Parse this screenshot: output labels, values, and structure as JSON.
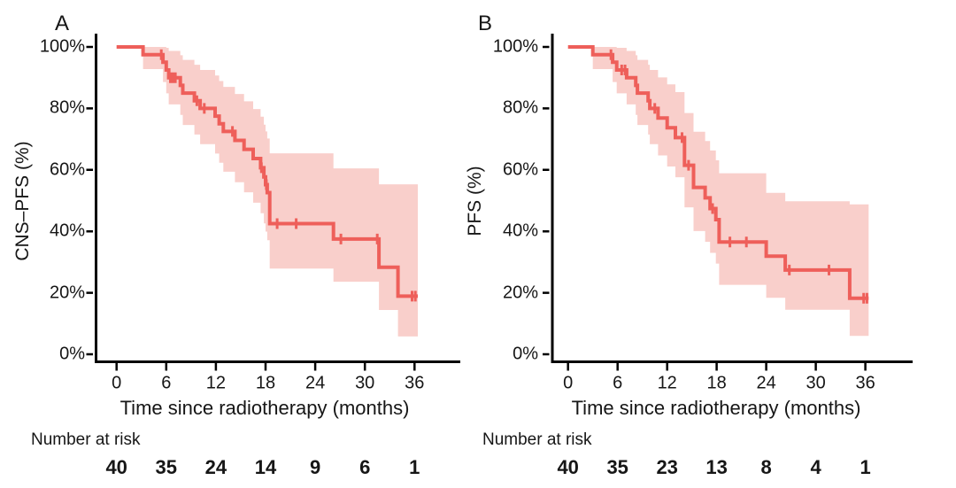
{
  "figure": {
    "background_color": "#ffffff",
    "curve_color": "#EE5F5A",
    "band_color": "#F9CFCB",
    "axis_color": "#000000",
    "text_color": "#161616"
  },
  "chart_data": [
    {
      "type": "line",
      "curve_style": "kaplan-meier-step",
      "panel_label": "A",
      "ylabel": "CNS–PFS (%)",
      "xlabel": "Time since radiotherapy (months)",
      "xticks": [
        0,
        6,
        12,
        18,
        24,
        30,
        36
      ],
      "ytick_labels": [
        "100%",
        "80%",
        "60%",
        "40%",
        "20%",
        "0%"
      ],
      "yticks": [
        100,
        80,
        60,
        40,
        20,
        0
      ],
      "xlim": [
        0,
        41.5
      ],
      "ylim": [
        0,
        100
      ],
      "legend": "none",
      "grid": "off",
      "band_is": "95% confidence interval (shaded)",
      "steps_t_s_lo_hi": [
        [
          0.0,
          100.0,
          100.0,
          100.0
        ],
        [
          3.2,
          97.5,
          92.8,
          100.0
        ],
        [
          5.6,
          95.0,
          88.6,
          100.0
        ],
        [
          6.0,
          92.5,
          84.9,
          99.7
        ],
        [
          6.3,
          90.0,
          81.3,
          98.7
        ],
        [
          7.7,
          87.5,
          77.9,
          97.3
        ],
        [
          8.0,
          85.0,
          74.6,
          95.8
        ],
        [
          9.4,
          82.5,
          71.5,
          94.2
        ],
        [
          10.1,
          80.0,
          68.4,
          92.5
        ],
        [
          11.9,
          77.5,
          65.3,
          90.7
        ],
        [
          12.4,
          75.0,
          62.3,
          88.9
        ],
        [
          12.9,
          72.5,
          59.4,
          87.0
        ],
        [
          14.3,
          69.6,
          56.0,
          84.7
        ],
        [
          15.4,
          66.7,
          52.7,
          82.3
        ],
        [
          16.5,
          63.7,
          49.3,
          79.8
        ],
        [
          17.4,
          60.7,
          45.9,
          77.3
        ],
        [
          17.8,
          57.7,
          42.6,
          74.7
        ],
        [
          18.0,
          55.2,
          39.9,
          72.5
        ],
        [
          18.2,
          52.6,
          37.1,
          70.2
        ],
        [
          18.5,
          42.5,
          27.9,
          65.4
        ],
        [
          26.2,
          37.5,
          23.6,
          60.5
        ],
        [
          31.7,
          28.3,
          14.4,
          55.3
        ],
        [
          34.0,
          18.9,
          5.8,
          55.3
        ]
      ],
      "end_time": 36.4,
      "censor_marks_t_s": [
        [
          5.4,
          97.5
        ],
        [
          6.5,
          90.0
        ],
        [
          6.8,
          90.0
        ],
        [
          7.1,
          90.0
        ],
        [
          9.7,
          82.5
        ],
        [
          10.6,
          80.0
        ],
        [
          14.0,
          72.5
        ],
        [
          17.5,
          60.7
        ],
        [
          18.1,
          55.2
        ],
        [
          19.4,
          42.5
        ],
        [
          21.7,
          42.5
        ],
        [
          27.1,
          37.5
        ],
        [
          31.5,
          37.5
        ],
        [
          35.7,
          18.9
        ],
        [
          36.1,
          18.9
        ]
      ],
      "risk_label": "Number at risk",
      "risk_times": [
        0,
        6,
        12,
        18,
        24,
        30,
        36
      ],
      "risk_values": [
        40,
        35,
        24,
        14,
        9,
        6,
        1
      ]
    },
    {
      "type": "line",
      "curve_style": "kaplan-meier-step",
      "panel_label": "B",
      "ylabel": "PFS (%)",
      "xlabel": "Time since radiotherapy (months)",
      "xticks": [
        0,
        6,
        12,
        18,
        24,
        30,
        36
      ],
      "ytick_labels": [
        "100%",
        "80%",
        "60%",
        "40%",
        "20%",
        "0%"
      ],
      "yticks": [
        100,
        80,
        60,
        40,
        20,
        0
      ],
      "xlim": [
        0,
        41.5
      ],
      "ylim": [
        0,
        100
      ],
      "legend": "none",
      "grid": "off",
      "band_is": "95% confidence interval (shaded)",
      "steps_t_s_lo_hi": [
        [
          0.0,
          100.0,
          100.0,
          100.0
        ],
        [
          3.0,
          97.5,
          92.8,
          100.0
        ],
        [
          5.4,
          95.0,
          88.6,
          100.0
        ],
        [
          5.9,
          92.5,
          84.9,
          99.7
        ],
        [
          7.1,
          90.0,
          81.3,
          98.7
        ],
        [
          8.2,
          87.5,
          77.9,
          97.3
        ],
        [
          8.4,
          85.0,
          74.6,
          95.8
        ],
        [
          9.7,
          82.5,
          71.5,
          94.2
        ],
        [
          9.9,
          80.0,
          68.4,
          92.5
        ],
        [
          10.9,
          76.9,
          64.7,
          90.1
        ],
        [
          12.0,
          73.7,
          61.1,
          87.8
        ],
        [
          13.0,
          70.5,
          57.6,
          85.3
        ],
        [
          14.1,
          61.5,
          47.8,
          78.5
        ],
        [
          15.2,
          54.3,
          40.1,
          72.4
        ],
        [
          16.6,
          50.9,
          36.6,
          69.4
        ],
        [
          17.2,
          47.4,
          33.0,
          66.3
        ],
        [
          17.9,
          43.8,
          29.5,
          63.1
        ],
        [
          18.3,
          36.5,
          22.6,
          58.9
        ],
        [
          24.0,
          31.9,
          18.4,
          52.5
        ],
        [
          26.3,
          27.4,
          14.5,
          49.8
        ],
        [
          34.1,
          18.2,
          6.0,
          48.8
        ]
      ],
      "end_time": 36.4,
      "censor_marks_t_s": [
        [
          5.2,
          97.5
        ],
        [
          6.5,
          92.5
        ],
        [
          6.9,
          92.5
        ],
        [
          10.5,
          80.0
        ],
        [
          13.8,
          70.5
        ],
        [
          14.6,
          61.5
        ],
        [
          17.5,
          47.4
        ],
        [
          19.6,
          36.5
        ],
        [
          21.6,
          36.5
        ],
        [
          26.8,
          27.4
        ],
        [
          31.6,
          27.4
        ],
        [
          35.8,
          18.2
        ],
        [
          36.2,
          18.2
        ]
      ],
      "risk_label": "Number at risk",
      "risk_times": [
        0,
        6,
        12,
        18,
        24,
        30,
        36
      ],
      "risk_values": [
        40,
        35,
        23,
        13,
        8,
        4,
        1
      ]
    }
  ]
}
